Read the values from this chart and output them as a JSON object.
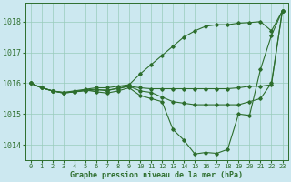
{
  "background_color": "#cce8f0",
  "plot_bg_color": "#cce8f0",
  "grid_color": "#99ccbb",
  "line_color": "#2d6e2d",
  "xlabel": "Graphe pression niveau de la mer (hPa)",
  "ylim": [
    1013.5,
    1018.6
  ],
  "xlim": [
    -0.5,
    23.5
  ],
  "yticks": [
    1014,
    1015,
    1016,
    1017,
    1018
  ],
  "xticks": [
    0,
    1,
    2,
    3,
    4,
    5,
    6,
    7,
    8,
    9,
    10,
    11,
    12,
    13,
    14,
    15,
    16,
    17,
    18,
    19,
    20,
    21,
    22,
    23
  ],
  "series": [
    [
      1016.0,
      1015.85,
      1015.75,
      1015.7,
      1015.75,
      1015.8,
      1015.85,
      1015.85,
      1015.9,
      1015.95,
      1016.3,
      1016.6,
      1016.9,
      1017.2,
      1017.5,
      1017.7,
      1017.85,
      1017.9,
      1017.9,
      1017.95,
      1017.97,
      1018.0,
      1017.7,
      1018.35
    ],
    [
      1016.0,
      1015.85,
      1015.75,
      1015.7,
      1015.72,
      1015.75,
      1015.78,
      1015.78,
      1015.82,
      1015.9,
      1015.85,
      1015.82,
      1015.82,
      1015.82,
      1015.82,
      1015.82,
      1015.82,
      1015.82,
      1015.82,
      1015.85,
      1015.9,
      1015.9,
      1015.95,
      1018.35
    ],
    [
      1016.0,
      1015.85,
      1015.75,
      1015.68,
      1015.72,
      1015.78,
      1015.8,
      1015.75,
      1015.85,
      1015.9,
      1015.75,
      1015.7,
      1015.55,
      1015.4,
      1015.35,
      1015.3,
      1015.3,
      1015.3,
      1015.3,
      1015.3,
      1015.4,
      1015.5,
      1016.0,
      1018.35
    ],
    [
      1016.0,
      1015.85,
      1015.75,
      1015.68,
      1015.72,
      1015.78,
      1015.72,
      1015.68,
      1015.75,
      1015.85,
      1015.6,
      1015.5,
      1015.4,
      1014.5,
      1014.15,
      1013.7,
      1013.75,
      1013.72,
      1013.85,
      1015.0,
      1014.95,
      1016.45,
      1017.55,
      1018.35
    ]
  ]
}
